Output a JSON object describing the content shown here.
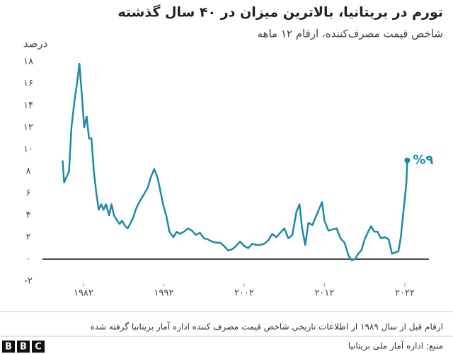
{
  "chart_data": {
    "type": "line",
    "title": "تورم در بریتانیا، بالاترین میزان در ۴۰ سال گذشته",
    "subtitle": "شاخص قیمت مصرف‌کننده، ارقام ۱۲ ماهه",
    "y_label": "درصد",
    "annotation": "%۹",
    "note": "ارقام قبل از سال ۱۹۸۹ از اطلاعات تاریخی شاخص قیمت مصرف کننده اداره آمار بریتانیا گرفته شده",
    "source": "منبع: اداره آمار ملی بریتانیا",
    "logo": [
      "B",
      "B",
      "C"
    ],
    "color": "#1d8aa3",
    "x": [
      1979.4,
      1979.6,
      1979.9,
      1980.2,
      1980.5,
      1980.9,
      1981.2,
      1981.5,
      1981.8,
      1982.1,
      1982.4,
      1982.7,
      1983.0,
      1983.3,
      1983.6,
      1983.9,
      1984.2,
      1984.5,
      1984.8,
      1985.2,
      1985.5,
      1985.8,
      1986.2,
      1986.5,
      1986.8,
      1987.2,
      1987.5,
      1987.8,
      1988.2,
      1988.5,
      1988.8,
      1989.2,
      1989.6,
      1990.0,
      1990.4,
      1990.8,
      1991.2,
      1991.5,
      1991.9,
      1992.3,
      1992.7,
      1993.2,
      1993.6,
      1994.0,
      1994.5,
      1995.0,
      1995.5,
      1996.0,
      1996.5,
      1997.0,
      1997.5,
      1998.0,
      1998.5,
      1999.0,
      1999.5,
      2000.0,
      2000.5,
      2001.0,
      2001.5,
      2002.0,
      2002.5,
      2003.0,
      2003.5,
      2004.0,
      2004.5,
      2005.0,
      2005.5,
      2006.0,
      2006.5,
      2007.0,
      2007.5,
      2008.0,
      2008.5,
      2008.9,
      2009.2,
      2009.6,
      2010.0,
      2010.5,
      2011.0,
      2011.7,
      2012.0,
      2012.5,
      2013.0,
      2013.5,
      2014.0,
      2014.5,
      2015.0,
      2015.4,
      2015.8,
      2016.2,
      2016.6,
      2017.0,
      2017.5,
      2017.8,
      2018.2,
      2018.6,
      2019.0,
      2019.5,
      2020.0,
      2020.4,
      2020.8,
      2021.2,
      2021.5,
      2021.8,
      2022.0,
      2022.2,
      2022.3
    ],
    "values": [
      9,
      7,
      7.5,
      8,
      12,
      14.5,
      16,
      17.8,
      15,
      12,
      13,
      11,
      11,
      8,
      6,
      4.5,
      5,
      4.5,
      5,
      4,
      5,
      4,
      3.5,
      3.2,
      3.5,
      3,
      2.8,
      3.2,
      3.8,
      4.5,
      5,
      5.5,
      6,
      6.5,
      7.5,
      8.2,
      7.5,
      6.5,
      5,
      4,
      2.5,
      2,
      2.5,
      2.3,
      2.5,
      2.8,
      2.6,
      2.2,
      2.4,
      1.9,
      1.8,
      1.6,
      1.5,
      1.5,
      1.2,
      0.8,
      0.9,
      1.2,
      1.6,
      1.2,
      1.0,
      1.4,
      1.3,
      1.3,
      1.4,
      1.7,
      2.3,
      2.0,
      2.4,
      2.8,
      1.9,
      2.2,
      4.3,
      5.0,
      2.9,
      1.3,
      3.3,
      3.1,
      4.0,
      5.2,
      3.5,
      2.6,
      2.7,
      2.8,
      1.9,
      1.5,
      0.3,
      -0.1,
      0,
      0.5,
      0.8,
      1.8,
      2.6,
      3.0,
      2.5,
      2.5,
      1.9,
      2.0,
      1.8,
      0.5,
      0.6,
      0.7,
      2.0,
      4.2,
      5.5,
      7.0,
      9.0
    ],
    "xlim": [
      1976.9,
      2025.0
    ],
    "ylim": [
      -2,
      18
    ],
    "xticks": [
      {
        "value": 1982,
        "label": "۱۹۸۲"
      },
      {
        "value": 1992,
        "label": "۱۹۹۲"
      },
      {
        "value": 2002,
        "label": "۲۰۰۲"
      },
      {
        "value": 2012,
        "label": "۲۰۱۲"
      },
      {
        "value": 2022,
        "label": "۲۰۲۲"
      }
    ],
    "yticks": [
      {
        "value": -2,
        "label": "-۲"
      },
      {
        "value": 0,
        "label": "۰"
      },
      {
        "value": 2,
        "label": "۲"
      },
      {
        "value": 4,
        "label": "۴"
      },
      {
        "value": 6,
        "label": "۶"
      },
      {
        "value": 8,
        "label": "۸"
      },
      {
        "value": 10,
        "label": "۱۰"
      },
      {
        "value": 12,
        "label": "۱۲"
      },
      {
        "value": 14,
        "label": "۱۴"
      },
      {
        "value": 16,
        "label": "۱۶"
      },
      {
        "value": 18,
        "label": "۱۸"
      }
    ]
  }
}
